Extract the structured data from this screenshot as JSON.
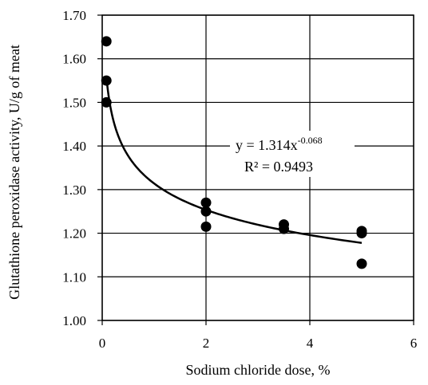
{
  "chart_data": {
    "type": "scatter",
    "xlabel": "Sodium chloride dose, %",
    "ylabel": "Glutathione peroxidase activity, U/g of meat",
    "xlim": [
      0,
      6
    ],
    "ylim": [
      1.0,
      1.7
    ],
    "x_ticks": [
      "0",
      "2",
      "4",
      "6"
    ],
    "y_ticks": [
      "1.00",
      "1.10",
      "1.20",
      "1.30",
      "1.40",
      "1.50",
      "1.60",
      "1.70"
    ],
    "grid": true,
    "series": [
      {
        "points": [
          {
            "x": 0.08,
            "y": 1.64
          },
          {
            "x": 0.08,
            "y": 1.55
          },
          {
            "x": 0.08,
            "y": 1.5
          },
          {
            "x": 2.0,
            "y": 1.27
          },
          {
            "x": 2.0,
            "y": 1.25
          },
          {
            "x": 2.0,
            "y": 1.215
          },
          {
            "x": 3.5,
            "y": 1.22
          },
          {
            "x": 3.5,
            "y": 1.21
          },
          {
            "x": 5.0,
            "y": 1.205
          },
          {
            "x": 5.0,
            "y": 1.2
          },
          {
            "x": 5.0,
            "y": 1.13
          }
        ],
        "color": "#000000"
      }
    ],
    "trendline": {
      "type": "power",
      "a": 1.314,
      "b": -0.068,
      "x_range": [
        0.08,
        5.0
      ],
      "equation_prefix": "y = 1.314x",
      "equation_exponent": "-0.068",
      "r_squared": "R² = 0.9493"
    }
  }
}
